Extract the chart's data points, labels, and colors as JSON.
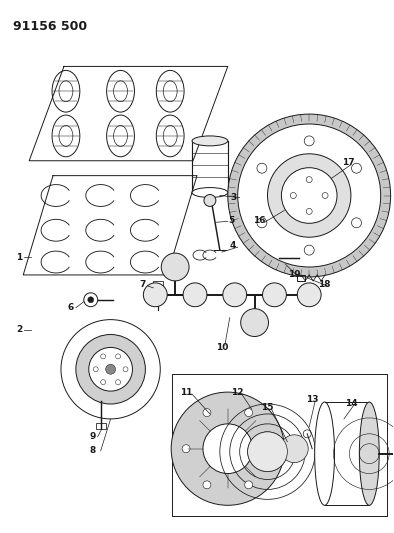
{
  "title_code": "91156 500",
  "bg_color": "#ffffff",
  "line_color": "#1a1a1a",
  "fig_w": 3.94,
  "fig_h": 5.33,
  "dpi": 100
}
